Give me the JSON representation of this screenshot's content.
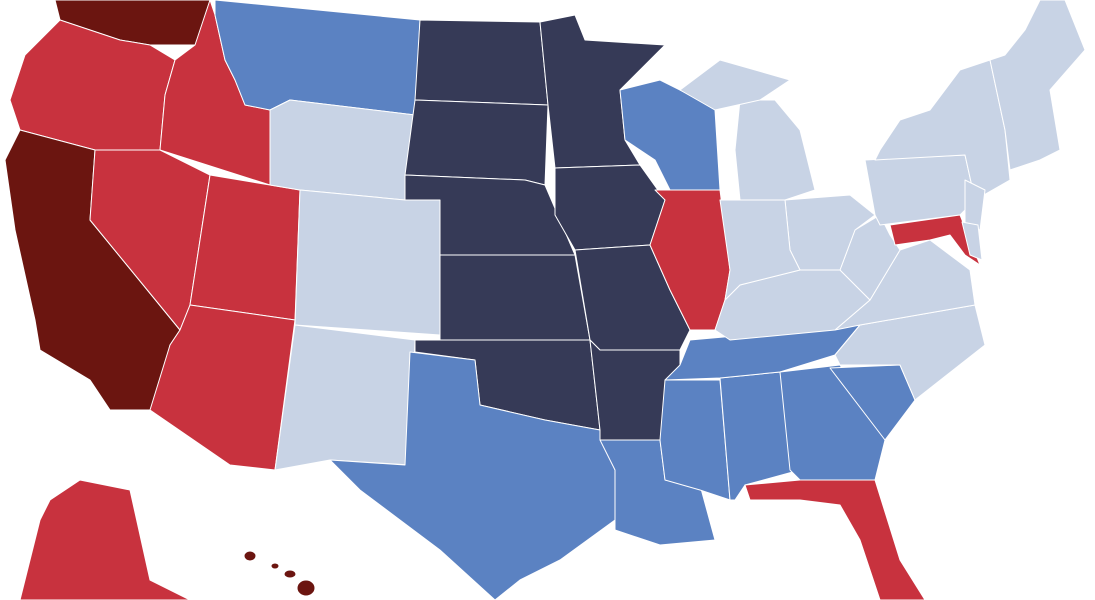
{
  "map": {
    "type": "choropleth",
    "region": "United States",
    "category_colors": {
      "darkred": "#6b1510",
      "red": "#c8323e",
      "navy": "#363a57",
      "blue": "#5b82c2",
      "light": "#c8d3e5"
    },
    "states": {
      "WA": "darkred",
      "CA": "darkred",
      "HI": "darkred",
      "OR": "red",
      "ID": "red",
      "NV": "red",
      "UT": "red",
      "AZ": "red",
      "IL": "red",
      "MD": "red",
      "FL": "red",
      "AK": "red",
      "ND": "navy",
      "SD": "navy",
      "NE": "navy",
      "KS": "navy",
      "OK": "navy",
      "MN": "navy",
      "IA": "navy",
      "MO": "navy",
      "AR": "navy",
      "MT": "blue",
      "WI": "blue",
      "TX": "blue",
      "LA": "blue",
      "MS": "blue",
      "AL": "blue",
      "GA": "blue",
      "SC": "blue",
      "TN": "blue",
      "WY": "light",
      "CO": "light",
      "NM": "light",
      "MI": "light",
      "IN": "light",
      "OH": "light",
      "KY": "light",
      "WV": "light",
      "VA": "light",
      "NC": "light",
      "PA": "light",
      "NY": "light",
      "NJ": "light",
      "DE": "light",
      "NE_REGION": "light"
    }
  }
}
